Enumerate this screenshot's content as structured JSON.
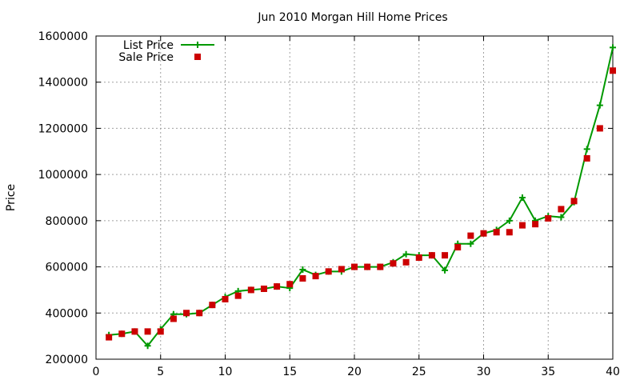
{
  "chart_data": {
    "type": "line",
    "title": "Jun 2010 Morgan Hill Home Prices",
    "xlabel": "",
    "ylabel": "Price",
    "xlim": [
      0,
      40
    ],
    "ylim": [
      200000,
      1600000
    ],
    "xticks": [
      0,
      5,
      10,
      15,
      20,
      25,
      30,
      35,
      40
    ],
    "yticks": [
      200000,
      400000,
      600000,
      800000,
      1000000,
      1200000,
      1400000,
      1600000
    ],
    "grid": true,
    "legend_position": "top-left",
    "x": [
      1,
      2,
      3,
      4,
      5,
      6,
      7,
      8,
      9,
      10,
      11,
      12,
      13,
      14,
      15,
      16,
      17,
      18,
      19,
      20,
      21,
      22,
      23,
      24,
      25,
      26,
      27,
      28,
      29,
      30,
      31,
      32,
      33,
      34,
      35,
      36,
      37,
      38,
      39,
      40
    ],
    "series": [
      {
        "name": "List Price",
        "style": "line+points",
        "color": "#009900",
        "marker": "plus",
        "values": [
          305000,
          310000,
          320000,
          258000,
          330000,
          395000,
          395000,
          400000,
          435000,
          470000,
          495000,
          500000,
          505000,
          515000,
          508000,
          588000,
          565000,
          580000,
          580000,
          600000,
          600000,
          600000,
          620000,
          655000,
          650000,
          650000,
          585000,
          700000,
          700000,
          745000,
          760000,
          800000,
          900000,
          800000,
          820000,
          815000,
          880000,
          1110000,
          1300000,
          1550000
        ]
      },
      {
        "name": "Sale Price",
        "style": "points",
        "color": "#cc0000",
        "marker": "square",
        "values": [
          295000,
          310000,
          320000,
          320000,
          320000,
          375000,
          400000,
          400000,
          435000,
          460000,
          475000,
          500000,
          505000,
          515000,
          525000,
          550000,
          560000,
          580000,
          590000,
          600000,
          600000,
          600000,
          615000,
          620000,
          640000,
          650000,
          650000,
          685000,
          735000,
          745000,
          750000,
          750000,
          780000,
          785000,
          810000,
          850000,
          885000,
          1070000,
          1200000,
          1450000
        ]
      }
    ]
  }
}
